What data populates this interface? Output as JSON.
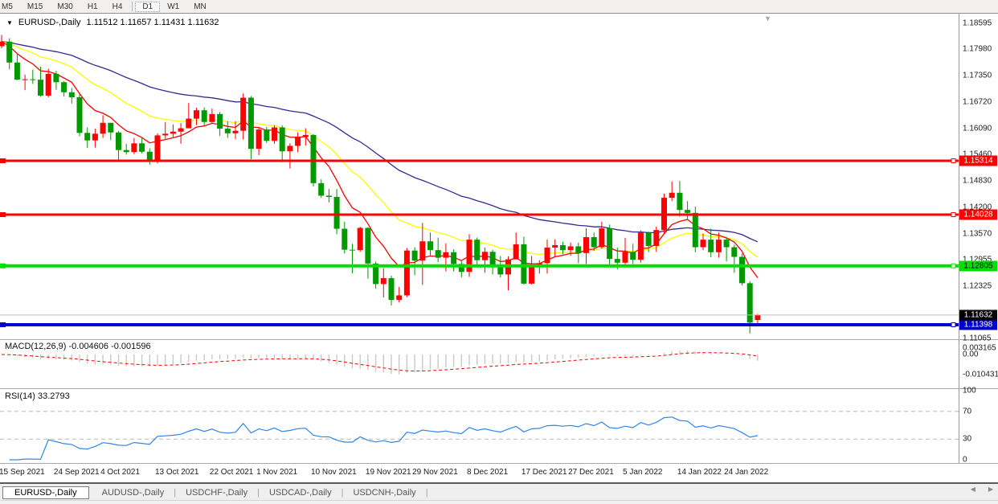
{
  "toolbar": {
    "timeframes": [
      "M5",
      "M15",
      "M30",
      "H1",
      "H4",
      "D1",
      "W1",
      "MN"
    ],
    "active": "D1"
  },
  "chart_header": {
    "symbol": "EURUSD-,Daily",
    "ohlc": "1.11512 1.11657 1.11431 1.11632"
  },
  "colors": {
    "bull_candle": "#ff0000",
    "bear_candle": "#009900",
    "ma_fast": "#ff0000",
    "ma_mid": "#ffff00",
    "ma_slow": "#352a8f",
    "resistance_line": "#ff0000",
    "support_line": "#00dd00",
    "low_line": "#0000cc",
    "current_price_line": "#bdbdbd",
    "macd_histogram": "#c9c9c9",
    "macd_signal": "#ff0000",
    "rsi_line": "#2e86e8",
    "rsi_levels": "#b8b8b8"
  },
  "price_axis": {
    "labels": [
      1.18595,
      1.1798,
      1.1735,
      1.1672,
      1.1609,
      1.1546,
      1.1483,
      1.142,
      1.1357,
      1.12955,
      1.12325,
      1.11065
    ]
  },
  "price_lines": [
    {
      "label": "1.15314",
      "price": 1.15314,
      "color": "#ff0000",
      "text_color": "#ffffff",
      "width": 3
    },
    {
      "label": "1.14028",
      "price": 1.14028,
      "color": "#ff0000",
      "text_color": "#ffffff",
      "width": 3
    },
    {
      "label": "1.12805",
      "price": 1.12805,
      "color": "#00dd00",
      "text_color": "#000000",
      "width": 4
    },
    {
      "label": "1.11398",
      "price": 1.11398,
      "color": "#0000cc",
      "text_color": "#ffffff",
      "width": 4
    }
  ],
  "current_price": {
    "label": "1.11632",
    "price": 1.11632,
    "badge_color": "#000000",
    "text_color": "#ffffff"
  },
  "macd_panel": {
    "label": "MACD(12,26,9)",
    "values": "-0.004606 -0.001596",
    "scale_labels": [
      "0.003165",
      "0.00",
      "-0.010431"
    ],
    "scale_values": [
      0.003165,
      0,
      -0.010431
    ]
  },
  "rsi_panel": {
    "label": "RSI(14)",
    "value": "33.2793",
    "scale_labels": [
      "100",
      "70",
      "30",
      "0"
    ],
    "scale_values": [
      100,
      70,
      30,
      0
    ],
    "level_lines": [
      70,
      30
    ]
  },
  "date_axis": {
    "ticks": [
      {
        "text": "15 Sep 2021",
        "index": 0
      },
      {
        "text": "24 Sep 2021",
        "index": 7
      },
      {
        "text": "4 Oct 2021",
        "index": 13
      },
      {
        "text": "13 Oct 2021",
        "index": 20
      },
      {
        "text": "22 Oct 2021",
        "index": 27
      },
      {
        "text": "1 Nov 2021",
        "index": 33
      },
      {
        "text": "10 Nov 2021",
        "index": 40
      },
      {
        "text": "19 Nov 2021",
        "index": 47
      },
      {
        "text": "29 Nov 2021",
        "index": 53
      },
      {
        "text": "8 Dec 2021",
        "index": 60
      },
      {
        "text": "17 Dec 2021",
        "index": 67
      },
      {
        "text": "27 Dec 2021",
        "index": 73
      },
      {
        "text": "5 Jan 2022",
        "index": 80
      },
      {
        "text": "14 Jan 2022",
        "index": 87
      },
      {
        "text": "24 Jan 2022",
        "index": 93
      }
    ]
  },
  "tabs": {
    "items": [
      "EURUSD-,Daily",
      "AUDUSD-,Daily",
      "USDCHF-,Daily",
      "USDCAD-,Daily",
      "USDCNH-,Daily"
    ],
    "active": "EURUSD-,Daily"
  },
  "chart_data": {
    "type": "candlestick",
    "title": "EURUSD-,Daily",
    "ylim": [
      1.109,
      1.1875
    ],
    "last_bar": {
      "open": 1.11512,
      "high": 1.11657,
      "low": 1.11431,
      "close": 1.11632
    },
    "up_color_convention": "red-up-green-down",
    "candles": [
      [
        1.1805,
        1.1832,
        1.18,
        1.1816
      ],
      [
        1.1816,
        1.1824,
        1.175,
        1.1766
      ],
      [
        1.1766,
        1.1788,
        1.1724,
        1.1725
      ],
      [
        1.1725,
        1.1737,
        1.17,
        1.1726
      ],
      [
        1.1726,
        1.1749,
        1.1715,
        1.1725
      ],
      [
        1.1725,
        1.1756,
        1.1684,
        1.1687
      ],
      [
        1.1687,
        1.1751,
        1.1683,
        1.1739
      ],
      [
        1.1739,
        1.1746,
        1.1701,
        1.1719
      ],
      [
        1.1719,
        1.1722,
        1.1685,
        1.1695
      ],
      [
        1.1695,
        1.1705,
        1.1668,
        1.1683
      ],
      [
        1.1683,
        1.169,
        1.159,
        1.1598
      ],
      [
        1.1598,
        1.1611,
        1.1562,
        1.158
      ],
      [
        1.158,
        1.1608,
        1.1563,
        1.1596
      ],
      [
        1.1596,
        1.164,
        1.1586,
        1.1622
      ],
      [
        1.1622,
        1.1622,
        1.1581,
        1.1599
      ],
      [
        1.1599,
        1.1602,
        1.1529,
        1.1557
      ],
      [
        1.1557,
        1.1572,
        1.1546,
        1.1552
      ],
      [
        1.1552,
        1.1586,
        1.1547,
        1.1573
      ],
      [
        1.1573,
        1.1586,
        1.1549,
        1.1553
      ],
      [
        1.1553,
        1.1561,
        1.1522,
        1.1531
      ],
      [
        1.1531,
        1.1597,
        1.1525,
        1.1592
      ],
      [
        1.1592,
        1.1624,
        1.1584,
        1.1596
      ],
      [
        1.1596,
        1.1618,
        1.1588,
        1.1601
      ],
      [
        1.1601,
        1.1621,
        1.1572,
        1.1609
      ],
      [
        1.1609,
        1.1669,
        1.1609,
        1.1632
      ],
      [
        1.1632,
        1.1658,
        1.1617,
        1.1652
      ],
      [
        1.1652,
        1.1659,
        1.1616,
        1.1624
      ],
      [
        1.1624,
        1.1656,
        1.162,
        1.1643
      ],
      [
        1.1643,
        1.1648,
        1.1591,
        1.1608
      ],
      [
        1.1608,
        1.1626,
        1.1586,
        1.1597
      ],
      [
        1.1597,
        1.1626,
        1.1583,
        1.1603
      ],
      [
        1.1603,
        1.1692,
        1.1582,
        1.1682
      ],
      [
        1.1682,
        1.1686,
        1.1535,
        1.156
      ],
      [
        1.156,
        1.1609,
        1.1545,
        1.1606
      ],
      [
        1.1606,
        1.1612,
        1.1574,
        1.1579
      ],
      [
        1.1579,
        1.1616,
        1.1572,
        1.1611
      ],
      [
        1.1611,
        1.1616,
        1.1528,
        1.1554
      ],
      [
        1.1554,
        1.1573,
        1.1513,
        1.1567
      ],
      [
        1.1567,
        1.1599,
        1.1552,
        1.1588
      ],
      [
        1.1588,
        1.1609,
        1.1568,
        1.1593
      ],
      [
        1.1593,
        1.1595,
        1.147,
        1.1478
      ],
      [
        1.1478,
        1.1487,
        1.1443,
        1.1448
      ],
      [
        1.1448,
        1.1464,
        1.1432,
        1.1445
      ],
      [
        1.1445,
        1.1464,
        1.1356,
        1.1369
      ],
      [
        1.1369,
        1.1386,
        1.131,
        1.1319
      ],
      [
        1.1319,
        1.1333,
        1.1263,
        1.1318
      ],
      [
        1.1318,
        1.1374,
        1.1314,
        1.1371
      ],
      [
        1.1371,
        1.1373,
        1.125,
        1.1286
      ],
      [
        1.1286,
        1.1291,
        1.1226,
        1.1237
      ],
      [
        1.1237,
        1.1275,
        1.1205,
        1.1251
      ],
      [
        1.1251,
        1.1257,
        1.1186,
        1.1199
      ],
      [
        1.1199,
        1.123,
        1.1193,
        1.121
      ],
      [
        1.121,
        1.1323,
        1.1206,
        1.1317
      ],
      [
        1.1317,
        1.1325,
        1.1258,
        1.1293
      ],
      [
        1.1293,
        1.1383,
        1.1235,
        1.1339
      ],
      [
        1.1339,
        1.136,
        1.1305,
        1.1318
      ],
      [
        1.1318,
        1.1348,
        1.1289,
        1.13
      ],
      [
        1.13,
        1.1334,
        1.1267,
        1.1313
      ],
      [
        1.1313,
        1.132,
        1.1267,
        1.1285
      ],
      [
        1.1285,
        1.1292,
        1.1253,
        1.1266
      ],
      [
        1.1266,
        1.1356,
        1.1254,
        1.1343
      ],
      [
        1.1343,
        1.1348,
        1.128,
        1.1294
      ],
      [
        1.1294,
        1.1324,
        1.1264,
        1.1314
      ],
      [
        1.1314,
        1.1319,
        1.126,
        1.1283
      ],
      [
        1.1283,
        1.1304,
        1.1253,
        1.126
      ],
      [
        1.126,
        1.1303,
        1.1222,
        1.1296
      ],
      [
        1.1296,
        1.136,
        1.1296,
        1.1332
      ],
      [
        1.1332,
        1.135,
        1.1236,
        1.1238
      ],
      [
        1.1238,
        1.1304,
        1.1236,
        1.128
      ],
      [
        1.128,
        1.1294,
        1.1262,
        1.1287
      ],
      [
        1.1287,
        1.1343,
        1.1262,
        1.1324
      ],
      [
        1.1324,
        1.1344,
        1.1303,
        1.133
      ],
      [
        1.133,
        1.1338,
        1.1308,
        1.1318
      ],
      [
        1.1318,
        1.1336,
        1.1305,
        1.1327
      ],
      [
        1.1327,
        1.1336,
        1.1287,
        1.1311
      ],
      [
        1.1311,
        1.137,
        1.1285,
        1.1349
      ],
      [
        1.1349,
        1.136,
        1.1316,
        1.1325
      ],
      [
        1.1325,
        1.1386,
        1.1321,
        1.137
      ],
      [
        1.137,
        1.1379,
        1.1279,
        1.1297
      ],
      [
        1.1297,
        1.1324,
        1.1272,
        1.1288
      ],
      [
        1.1288,
        1.1347,
        1.1284,
        1.1314
      ],
      [
        1.1314,
        1.1333,
        1.1285,
        1.1295
      ],
      [
        1.1295,
        1.1365,
        1.1288,
        1.136
      ],
      [
        1.136,
        1.1362,
        1.1313,
        1.1328
      ],
      [
        1.1328,
        1.1374,
        1.1314,
        1.1366
      ],
      [
        1.1366,
        1.1453,
        1.1357,
        1.1443
      ],
      [
        1.1443,
        1.1482,
        1.1435,
        1.1455
      ],
      [
        1.1455,
        1.1483,
        1.1398,
        1.1414
      ],
      [
        1.1414,
        1.1435,
        1.1391,
        1.1407
      ],
      [
        1.1407,
        1.1422,
        1.1313,
        1.1325
      ],
      [
        1.1325,
        1.1358,
        1.1318,
        1.1343
      ],
      [
        1.1343,
        1.1369,
        1.1301,
        1.1313
      ],
      [
        1.1313,
        1.136,
        1.13,
        1.1343
      ],
      [
        1.1343,
        1.1349,
        1.1291,
        1.1325
      ],
      [
        1.1325,
        1.1331,
        1.1264,
        1.1302
      ],
      [
        1.1302,
        1.131,
        1.1234,
        1.1239
      ],
      [
        1.1239,
        1.1244,
        1.1119,
        1.1145
      ],
      [
        1.11512,
        1.11657,
        1.11431,
        1.11632
      ]
    ]
  },
  "icons": {
    "symbol_dropdown": "▼",
    "shift_marker": "▼",
    "tab_scroll_left": "◀",
    "tab_scroll_right": "▶"
  }
}
